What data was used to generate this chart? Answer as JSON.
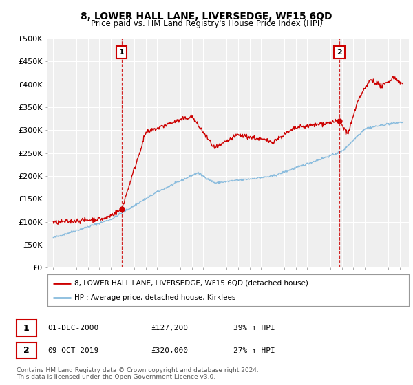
{
  "title": "8, LOWER HALL LANE, LIVERSEDGE, WF15 6QD",
  "subtitle": "Price paid vs. HM Land Registry's House Price Index (HPI)",
  "ylim": [
    0,
    500000
  ],
  "yticks": [
    0,
    50000,
    100000,
    150000,
    200000,
    250000,
    300000,
    350000,
    400000,
    450000,
    500000
  ],
  "ytick_labels": [
    "£0",
    "£50K",
    "£100K",
    "£150K",
    "£200K",
    "£250K",
    "£300K",
    "£350K",
    "£400K",
    "£450K",
    "£500K"
  ],
  "xlim_start": 1994.5,
  "xlim_end": 2025.8,
  "sale1_year": 2000.92,
  "sale1_price": 127200,
  "sale2_year": 2019.77,
  "sale2_price": 320000,
  "red_color": "#cc0000",
  "blue_color": "#88bbdd",
  "vline_color": "#cc0000",
  "legend_label_red": "8, LOWER HALL LANE, LIVERSEDGE, WF15 6QD (detached house)",
  "legend_label_blue": "HPI: Average price, detached house, Kirklees",
  "table_row1": [
    "1",
    "01-DEC-2000",
    "£127,200",
    "39% ↑ HPI"
  ],
  "table_row2": [
    "2",
    "09-OCT-2019",
    "£320,000",
    "27% ↑ HPI"
  ],
  "footer1": "Contains HM Land Registry data © Crown copyright and database right 2024.",
  "footer2": "This data is licensed under the Open Government Licence v3.0.",
  "bg_color": "#ffffff",
  "plot_bg_color": "#efefef",
  "grid_color": "#ffffff"
}
